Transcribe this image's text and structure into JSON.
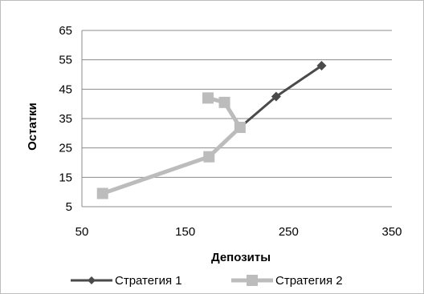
{
  "chart_data": {
    "type": "scatter",
    "title": "",
    "xlabel": "Депозиты",
    "ylabel": "Остатки",
    "xlim": [
      50,
      350
    ],
    "ylim": [
      5,
      65
    ],
    "x_ticks": [
      50,
      150,
      250,
      350
    ],
    "y_ticks": [
      5,
      15,
      25,
      35,
      45,
      55,
      65
    ],
    "grid": "horizontal",
    "legend_position": "bottom",
    "series": [
      {
        "name": "Стратегия 1",
        "color": "#4a4a4a",
        "marker": "diamond",
        "points": [
          {
            "x": 70,
            "y": 9.5
          },
          {
            "x": 173,
            "y": 22
          },
          {
            "x": 203,
            "y": 32
          },
          {
            "x": 238,
            "y": 42.5
          },
          {
            "x": 282,
            "y": 53
          }
        ]
      },
      {
        "name": "Стратегия 2",
        "color": "#bcbcbc",
        "marker": "square",
        "points": [
          {
            "x": 70,
            "y": 9.5
          },
          {
            "x": 173,
            "y": 22
          },
          {
            "x": 203,
            "y": 32
          },
          {
            "x": 188,
            "y": 40.5
          },
          {
            "x": 172,
            "y": 42
          }
        ]
      }
    ]
  }
}
